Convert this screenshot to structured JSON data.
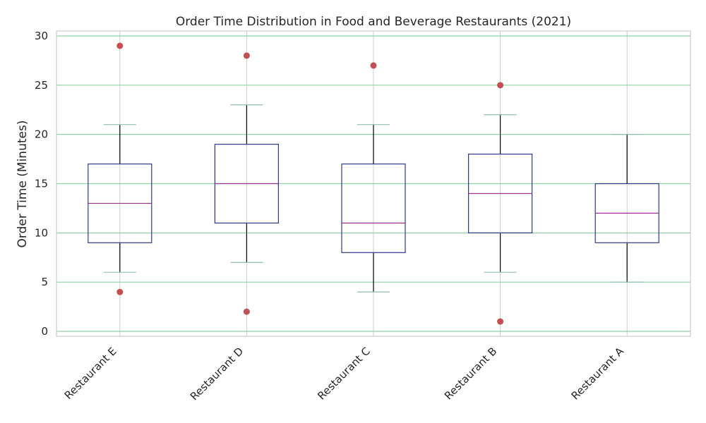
{
  "chart_data": {
    "type": "box",
    "title": "Order Time Distribution in Food and Beverage Restaurants (2021)",
    "xlabel": "",
    "ylabel": "Order Time (Minutes)",
    "ylim": [
      -0.5,
      30.5
    ],
    "yticks": [
      "0",
      "5",
      "10",
      "15",
      "20",
      "25",
      "30"
    ],
    "ytick_values": [
      0,
      5,
      10,
      15,
      20,
      25,
      30
    ],
    "grid": true,
    "categories": [
      "Restaurant E",
      "Restaurant D",
      "Restaurant C",
      "Restaurant B",
      "Restaurant A"
    ],
    "boxes": [
      {
        "category": "Restaurant E",
        "whislo": 6,
        "q1": 9,
        "med": 13,
        "q3": 17,
        "whishi": 21,
        "fliers": [
          29,
          4
        ]
      },
      {
        "category": "Restaurant D",
        "whislo": 7,
        "q1": 11,
        "med": 15,
        "q3": 19,
        "whishi": 23,
        "fliers": [
          28,
          2
        ]
      },
      {
        "category": "Restaurant C",
        "whislo": 4,
        "q1": 8,
        "med": 11,
        "q3": 17,
        "whishi": 21,
        "fliers": [
          27
        ]
      },
      {
        "category": "Restaurant B",
        "whislo": 6,
        "q1": 10,
        "med": 14,
        "q3": 18,
        "whishi": 22,
        "fliers": [
          25,
          1
        ]
      },
      {
        "category": "Restaurant A",
        "whislo": 5,
        "q1": 9,
        "med": 12,
        "q3": 15,
        "whishi": 20,
        "fliers": []
      }
    ],
    "colors": {
      "box": "#2e3a87",
      "median": "#a0309a",
      "whisker": "#000000",
      "cap": "#8fbfa8",
      "flier": "#c44e52",
      "hgrid": "#8fd1a6",
      "vgrid": "#cccccc",
      "frame": "#cccccc"
    }
  }
}
